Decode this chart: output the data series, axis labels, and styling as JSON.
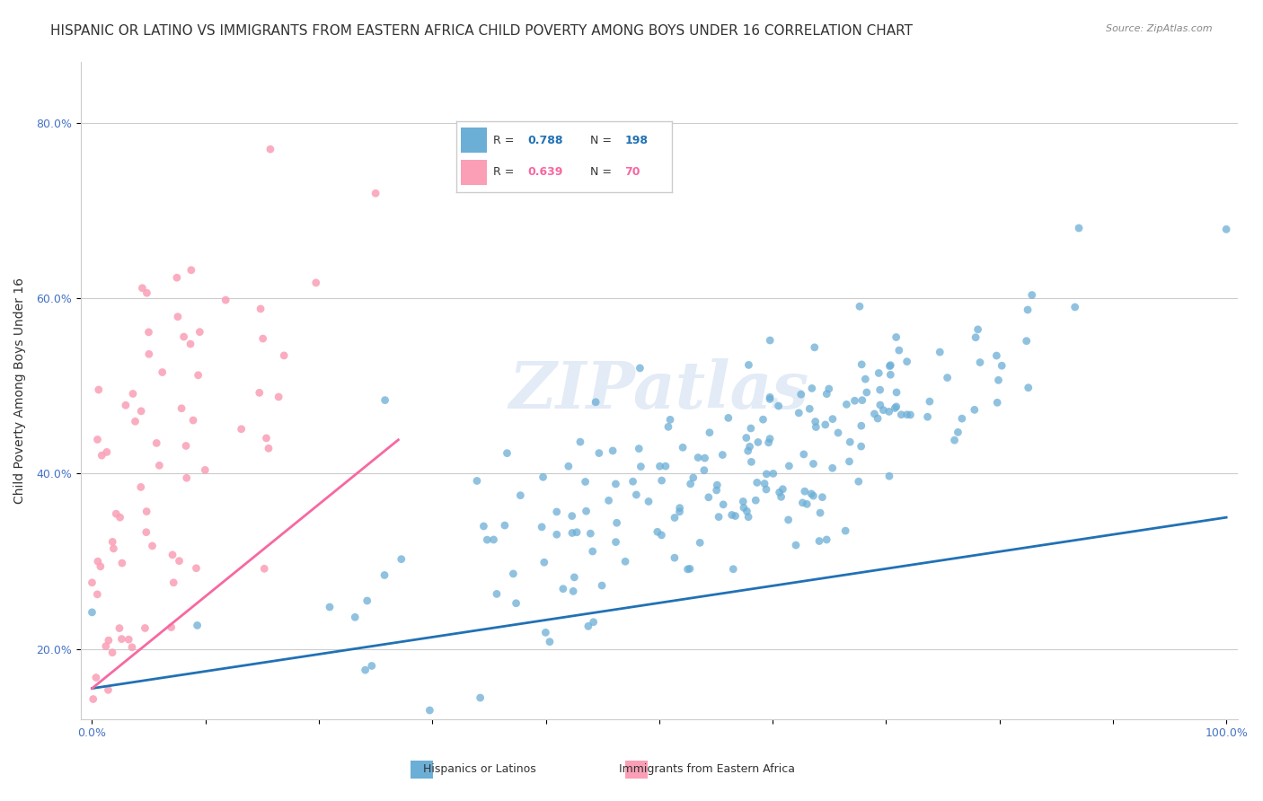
{
  "title": "HISPANIC OR LATINO VS IMMIGRANTS FROM EASTERN AFRICA CHILD POVERTY AMONG BOYS UNDER 16 CORRELATION CHART",
  "source": "Source: ZipAtlas.com",
  "ylabel": "Child Poverty Among Boys Under 16",
  "xlabel": "",
  "watermark": "ZIPatlas",
  "blue_R": 0.788,
  "blue_N": 198,
  "pink_R": 0.639,
  "pink_N": 70,
  "blue_color": "#6baed6",
  "pink_color": "#fa9fb5",
  "blue_line_color": "#2171b5",
  "pink_line_color": "#f768a1",
  "legend_blue_label": "Hispanics or Latinos",
  "legend_pink_label": "Immigrants from Eastern Africa",
  "xlim": [
    0.0,
    1.0
  ],
  "ylim": [
    0.12,
    0.87
  ],
  "x_ticks": [
    0.0,
    0.1,
    0.2,
    0.3,
    0.4,
    0.5,
    0.6,
    0.7,
    0.8,
    0.9,
    1.0
  ],
  "y_ticks": [
    0.2,
    0.4,
    0.6,
    0.8
  ],
  "background_color": "#ffffff",
  "grid_color": "#cccccc",
  "title_fontsize": 11,
  "axis_label_fontsize": 10,
  "tick_fontsize": 9,
  "seed_blue": 42,
  "seed_pink": 123,
  "blue_intercept": 0.155,
  "blue_slope": 0.195,
  "pink_intercept": 0.155,
  "pink_slope": 1.05
}
